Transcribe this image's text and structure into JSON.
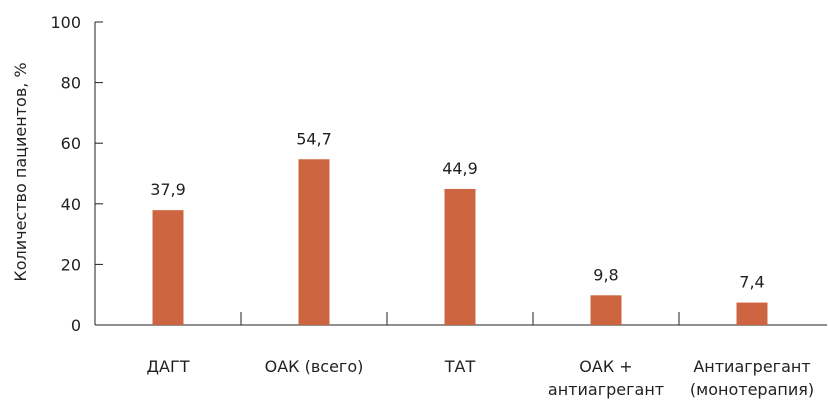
{
  "chart_data": {
    "type": "bar",
    "title": "",
    "xlabel": "",
    "ylabel": "Количество пациентов, %",
    "ylim": [
      0,
      100
    ],
    "yticks": [
      0,
      20,
      40,
      60,
      80,
      100
    ],
    "grid": false,
    "legend": "none",
    "bar_color": "#cc6540",
    "categories": [
      [
        "ДАГТ"
      ],
      [
        "ОАК (всего)"
      ],
      [
        "ТАТ"
      ],
      [
        "ОАК +",
        "антиагрегант"
      ],
      [
        "Антиагрегант",
        "(монотерапия)"
      ]
    ],
    "values": [
      37.9,
      54.7,
      44.9,
      9.8,
      7.4
    ],
    "value_labels": [
      "37,9",
      "54,7",
      "44,9",
      "9,8",
      "7,4"
    ]
  }
}
